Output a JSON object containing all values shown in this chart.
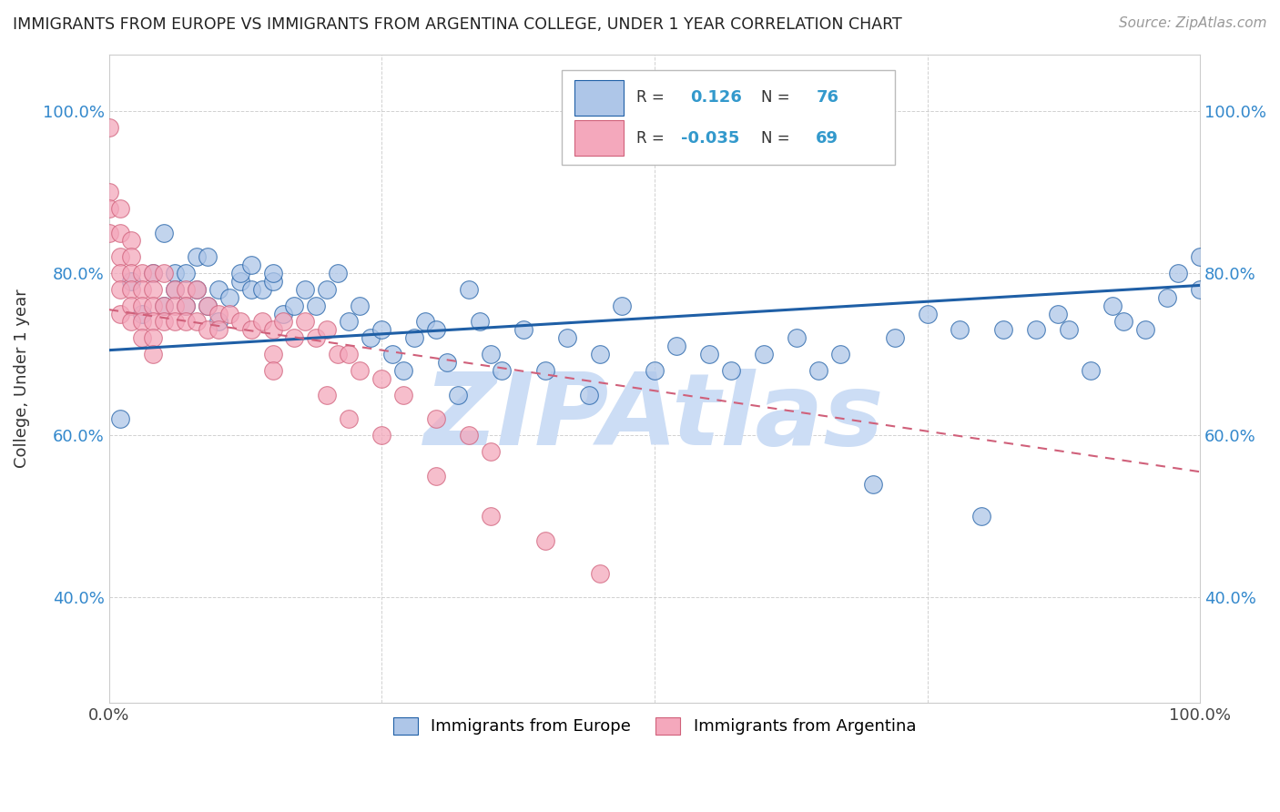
{
  "title": "IMMIGRANTS FROM EUROPE VS IMMIGRANTS FROM ARGENTINA COLLEGE, UNDER 1 YEAR CORRELATION CHART",
  "source": "Source: ZipAtlas.com",
  "ylabel": "College, Under 1 year",
  "legend_label1": "Immigrants from Europe",
  "legend_label2": "Immigrants from Argentina",
  "r1": 0.126,
  "n1": 76,
  "r2": -0.035,
  "n2": 69,
  "color1": "#aec6e8",
  "color2": "#f4a8bc",
  "line_color1": "#1f5fa6",
  "line_color2": "#d0607a",
  "xlim": [
    0,
    1
  ],
  "ylim": [
    0.27,
    1.07
  ],
  "xticks": [
    0,
    0.25,
    0.5,
    0.75,
    1.0
  ],
  "xtick_labels": [
    "0.0%",
    "",
    "",
    "",
    "100.0%"
  ],
  "ytick_labels": [
    "40.0%",
    "60.0%",
    "80.0%",
    "100.0%"
  ],
  "yticks": [
    0.4,
    0.6,
    0.8,
    1.0
  ],
  "watermark": "ZIPAtlas",
  "watermark_color": "#ccddf5",
  "europe_x": [
    0.01,
    0.02,
    0.03,
    0.04,
    0.05,
    0.05,
    0.06,
    0.06,
    0.07,
    0.07,
    0.08,
    0.08,
    0.09,
    0.09,
    0.1,
    0.1,
    0.11,
    0.12,
    0.12,
    0.13,
    0.13,
    0.14,
    0.15,
    0.15,
    0.16,
    0.17,
    0.18,
    0.19,
    0.2,
    0.21,
    0.22,
    0.23,
    0.24,
    0.25,
    0.26,
    0.27,
    0.28,
    0.29,
    0.3,
    0.31,
    0.32,
    0.33,
    0.34,
    0.35,
    0.36,
    0.38,
    0.4,
    0.42,
    0.44,
    0.45,
    0.47,
    0.5,
    0.52,
    0.55,
    0.57,
    0.6,
    0.63,
    0.65,
    0.67,
    0.7,
    0.72,
    0.75,
    0.78,
    0.8,
    0.82,
    0.85,
    0.87,
    0.88,
    0.9,
    0.92,
    0.93,
    0.95,
    0.97,
    0.98,
    1.0,
    1.0
  ],
  "europe_y": [
    0.62,
    0.79,
    0.75,
    0.8,
    0.85,
    0.76,
    0.8,
    0.78,
    0.8,
    0.76,
    0.82,
    0.78,
    0.82,
    0.76,
    0.78,
    0.74,
    0.77,
    0.79,
    0.8,
    0.81,
    0.78,
    0.78,
    0.79,
    0.8,
    0.75,
    0.76,
    0.78,
    0.76,
    0.78,
    0.8,
    0.74,
    0.76,
    0.72,
    0.73,
    0.7,
    0.68,
    0.72,
    0.74,
    0.73,
    0.69,
    0.65,
    0.78,
    0.74,
    0.7,
    0.68,
    0.73,
    0.68,
    0.72,
    0.65,
    0.7,
    0.76,
    0.68,
    0.71,
    0.7,
    0.68,
    0.7,
    0.72,
    0.68,
    0.7,
    0.54,
    0.72,
    0.75,
    0.73,
    0.5,
    0.73,
    0.73,
    0.75,
    0.73,
    0.68,
    0.76,
    0.74,
    0.73,
    0.77,
    0.8,
    0.82,
    0.78
  ],
  "argentina_x": [
    0.0,
    0.0,
    0.0,
    0.0,
    0.01,
    0.01,
    0.01,
    0.01,
    0.01,
    0.01,
    0.02,
    0.02,
    0.02,
    0.02,
    0.02,
    0.02,
    0.03,
    0.03,
    0.03,
    0.03,
    0.03,
    0.04,
    0.04,
    0.04,
    0.04,
    0.04,
    0.04,
    0.05,
    0.05,
    0.05,
    0.06,
    0.06,
    0.06,
    0.07,
    0.07,
    0.07,
    0.08,
    0.08,
    0.09,
    0.09,
    0.1,
    0.11,
    0.12,
    0.13,
    0.14,
    0.15,
    0.15,
    0.16,
    0.17,
    0.18,
    0.19,
    0.2,
    0.21,
    0.22,
    0.23,
    0.25,
    0.27,
    0.3,
    0.33,
    0.35,
    0.1,
    0.15,
    0.2,
    0.22,
    0.25,
    0.3,
    0.35,
    0.4,
    0.45
  ],
  "argentina_y": [
    0.98,
    0.9,
    0.88,
    0.85,
    0.88,
    0.85,
    0.82,
    0.8,
    0.78,
    0.75,
    0.84,
    0.82,
    0.8,
    0.78,
    0.76,
    0.74,
    0.8,
    0.78,
    0.76,
    0.74,
    0.72,
    0.8,
    0.78,
    0.76,
    0.74,
    0.72,
    0.7,
    0.8,
    0.76,
    0.74,
    0.78,
    0.76,
    0.74,
    0.78,
    0.76,
    0.74,
    0.78,
    0.74,
    0.76,
    0.73,
    0.75,
    0.75,
    0.74,
    0.73,
    0.74,
    0.73,
    0.7,
    0.74,
    0.72,
    0.74,
    0.72,
    0.73,
    0.7,
    0.7,
    0.68,
    0.67,
    0.65,
    0.62,
    0.6,
    0.58,
    0.73,
    0.68,
    0.65,
    0.62,
    0.6,
    0.55,
    0.5,
    0.47,
    0.43
  ]
}
